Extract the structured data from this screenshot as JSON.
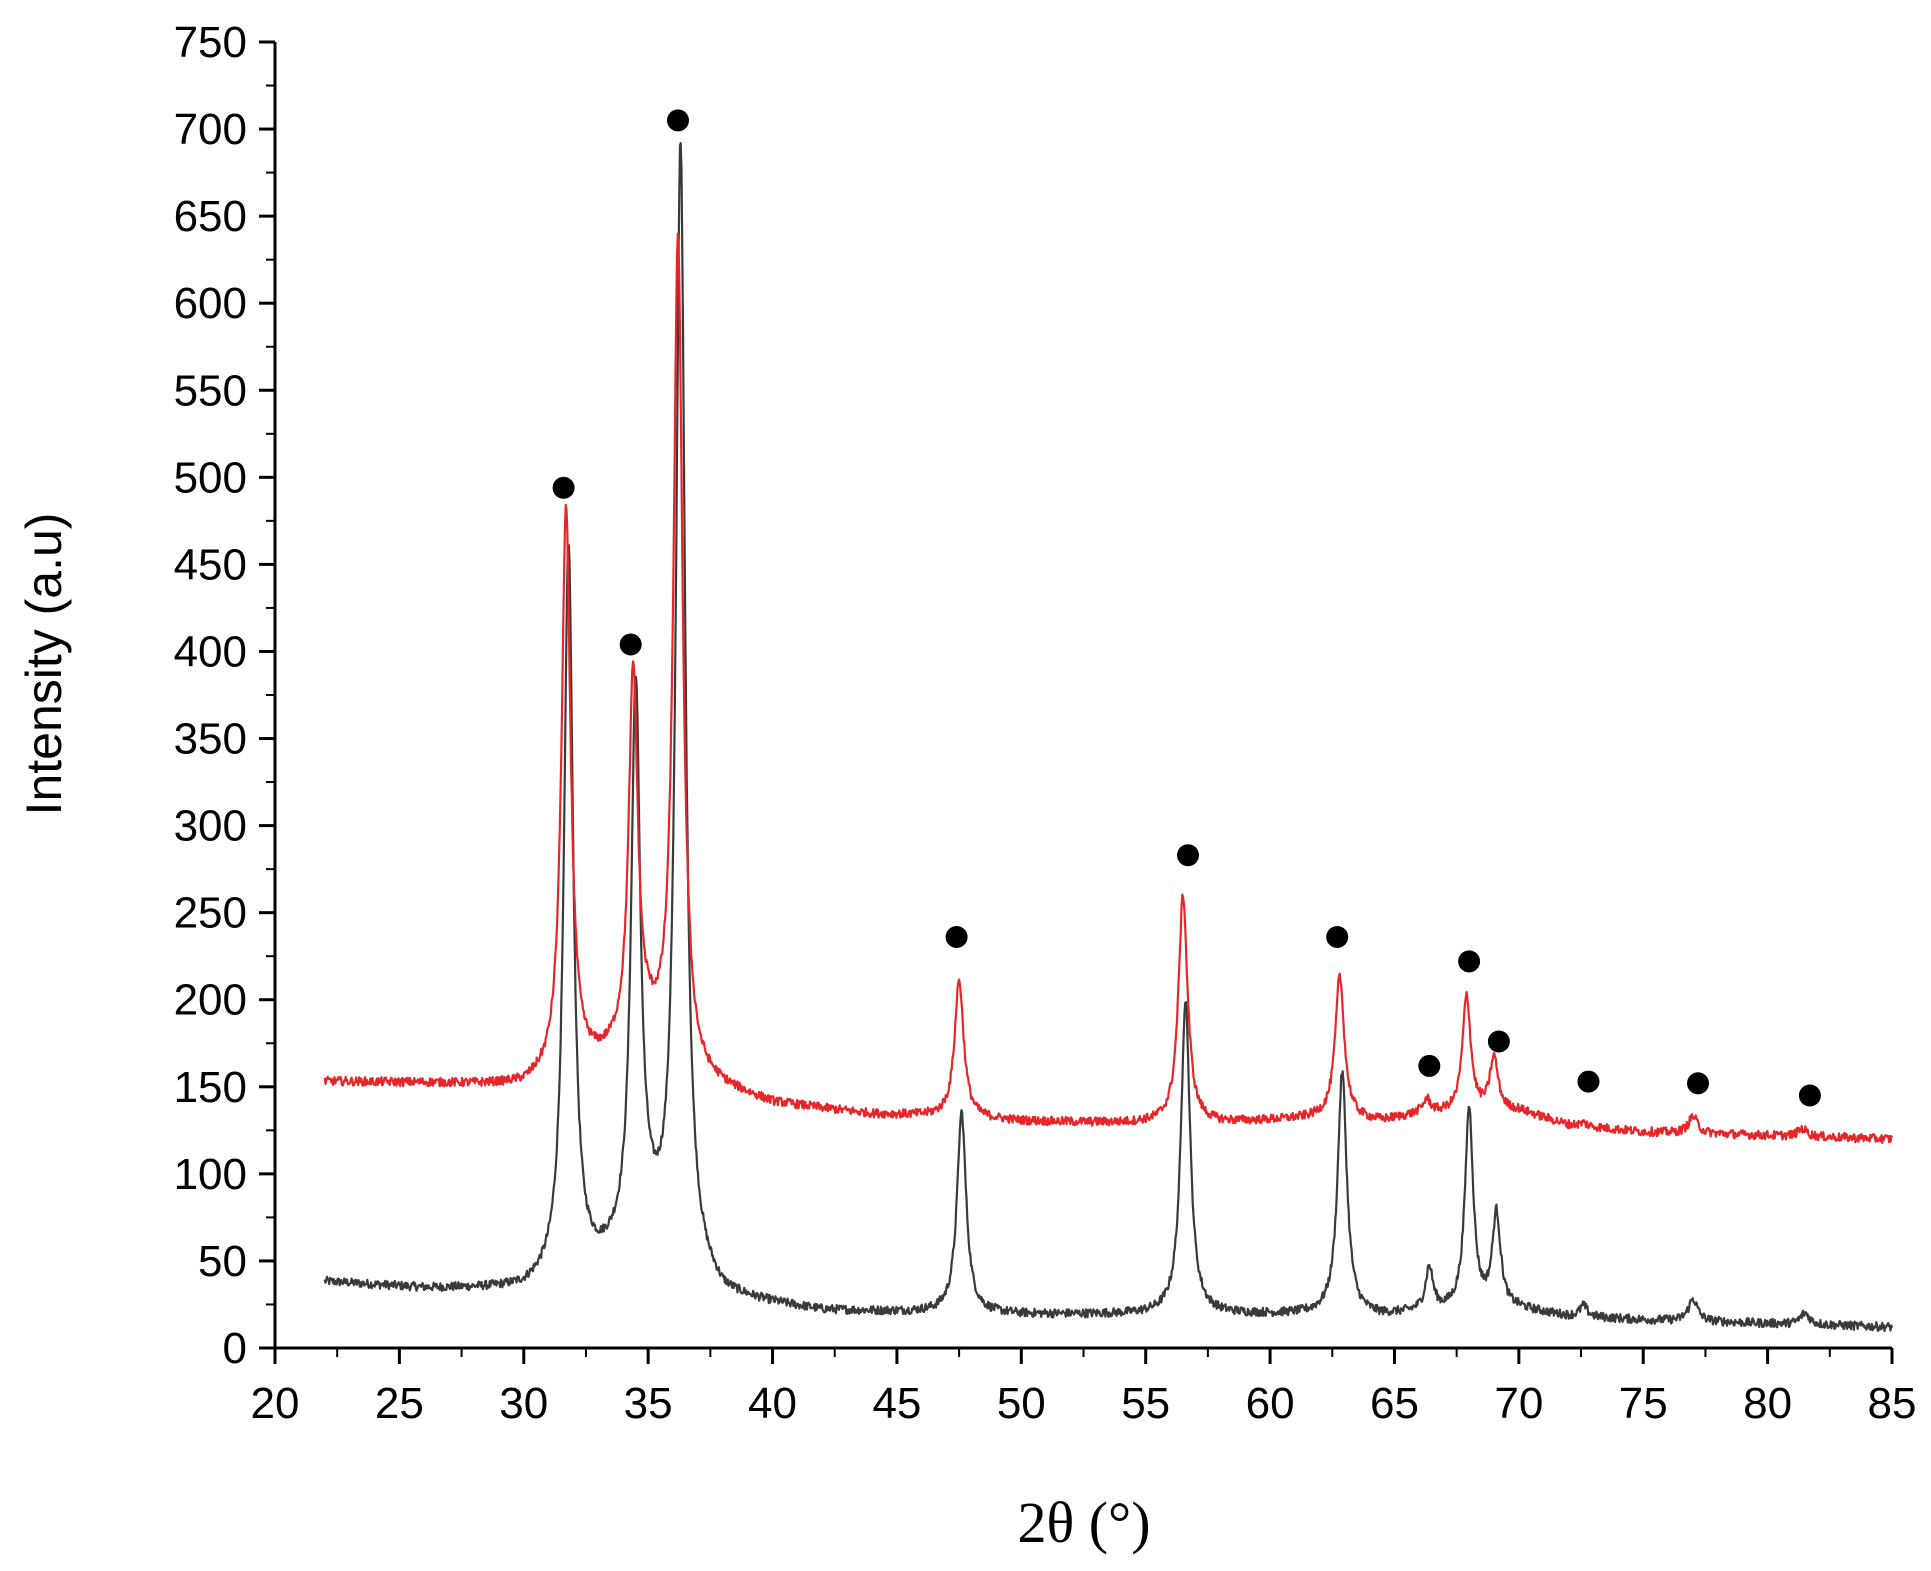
{
  "chart_data": {
    "type": "line",
    "xlabel": "2θ (°)",
    "ylabel": "Intensity (a.u)",
    "xlim": [
      20,
      85
    ],
    "ylim": [
      0,
      750
    ],
    "x_ticks": [
      20,
      25,
      30,
      35,
      40,
      45,
      50,
      55,
      60,
      65,
      70,
      75,
      80,
      85
    ],
    "y_ticks": [
      0,
      50,
      100,
      150,
      200,
      250,
      300,
      350,
      400,
      450,
      500,
      550,
      600,
      650,
      700,
      750
    ],
    "grid": false,
    "legend": "none",
    "series": [
      {
        "color": "#3a3a3a",
        "baseline": [
          [
            22,
            38
          ],
          [
            26,
            34
          ],
          [
            30,
            33
          ],
          [
            33,
            45
          ],
          [
            35,
            62
          ],
          [
            38,
            28
          ],
          [
            42,
            21
          ],
          [
            46,
            20
          ],
          [
            50,
            19
          ],
          [
            54,
            19
          ],
          [
            58,
            19
          ],
          [
            62,
            19
          ],
          [
            64.5,
            18
          ],
          [
            66,
            20
          ],
          [
            70,
            22
          ],
          [
            72,
            18
          ],
          [
            75,
            16
          ],
          [
            80,
            14
          ],
          [
            85,
            12
          ]
        ],
        "peaks": [
          {
            "x": 31.8,
            "y": 460,
            "w": 0.22
          },
          {
            "x": 34.5,
            "y": 376,
            "w": 0.22
          },
          {
            "x": 36.3,
            "y": 690,
            "w": 0.22
          },
          {
            "x": 47.6,
            "y": 135,
            "w": 0.22
          },
          {
            "x": 56.6,
            "y": 200,
            "w": 0.22
          },
          {
            "x": 62.9,
            "y": 158,
            "w": 0.22
          },
          {
            "x": 66.4,
            "y": 45,
            "w": 0.18
          },
          {
            "x": 68.0,
            "y": 137,
            "w": 0.2
          },
          {
            "x": 69.1,
            "y": 76,
            "w": 0.2
          },
          {
            "x": 72.6,
            "y": 24,
            "w": 0.18
          },
          {
            "x": 77.0,
            "y": 28,
            "w": 0.22
          },
          {
            "x": 81.5,
            "y": 20,
            "w": 0.22
          }
        ]
      },
      {
        "color": "#e8262a",
        "baseline": [
          [
            22,
            153
          ],
          [
            26,
            152
          ],
          [
            30,
            150
          ],
          [
            33,
            162
          ],
          [
            35,
            175
          ],
          [
            37,
            152
          ],
          [
            40,
            140
          ],
          [
            44,
            134
          ],
          [
            46,
            133
          ],
          [
            50,
            130
          ],
          [
            54,
            129
          ],
          [
            58,
            129
          ],
          [
            62,
            132
          ],
          [
            64.5,
            130
          ],
          [
            66,
            134
          ],
          [
            70,
            136
          ],
          [
            72,
            128
          ],
          [
            75,
            124
          ],
          [
            80,
            122
          ],
          [
            85,
            120
          ]
        ],
        "peaks": [
          {
            "x": 31.7,
            "y": 480,
            "w": 0.22
          },
          {
            "x": 34.4,
            "y": 385,
            "w": 0.22
          },
          {
            "x": 36.2,
            "y": 635,
            "w": 0.22
          },
          {
            "x": 47.5,
            "y": 211,
            "w": 0.22
          },
          {
            "x": 56.5,
            "y": 260,
            "w": 0.22
          },
          {
            "x": 62.8,
            "y": 213,
            "w": 0.22
          },
          {
            "x": 66.3,
            "y": 142,
            "w": 0.18
          },
          {
            "x": 67.9,
            "y": 202,
            "w": 0.2
          },
          {
            "x": 69.0,
            "y": 166,
            "w": 0.2
          },
          {
            "x": 72.6,
            "y": 129,
            "w": 0.2
          },
          {
            "x": 77.0,
            "y": 133,
            "w": 0.22
          },
          {
            "x": 81.4,
            "y": 126,
            "w": 0.22
          }
        ]
      }
    ],
    "markers": [
      {
        "x": 31.6,
        "y": 494
      },
      {
        "x": 34.3,
        "y": 404
      },
      {
        "x": 36.2,
        "y": 705
      },
      {
        "x": 47.4,
        "y": 236
      },
      {
        "x": 56.7,
        "y": 283
      },
      {
        "x": 62.7,
        "y": 236
      },
      {
        "x": 66.4,
        "y": 162
      },
      {
        "x": 68.0,
        "y": 222
      },
      {
        "x": 69.2,
        "y": 176
      },
      {
        "x": 72.8,
        "y": 153
      },
      {
        "x": 77.2,
        "y": 152
      },
      {
        "x": 81.7,
        "y": 145
      }
    ]
  }
}
